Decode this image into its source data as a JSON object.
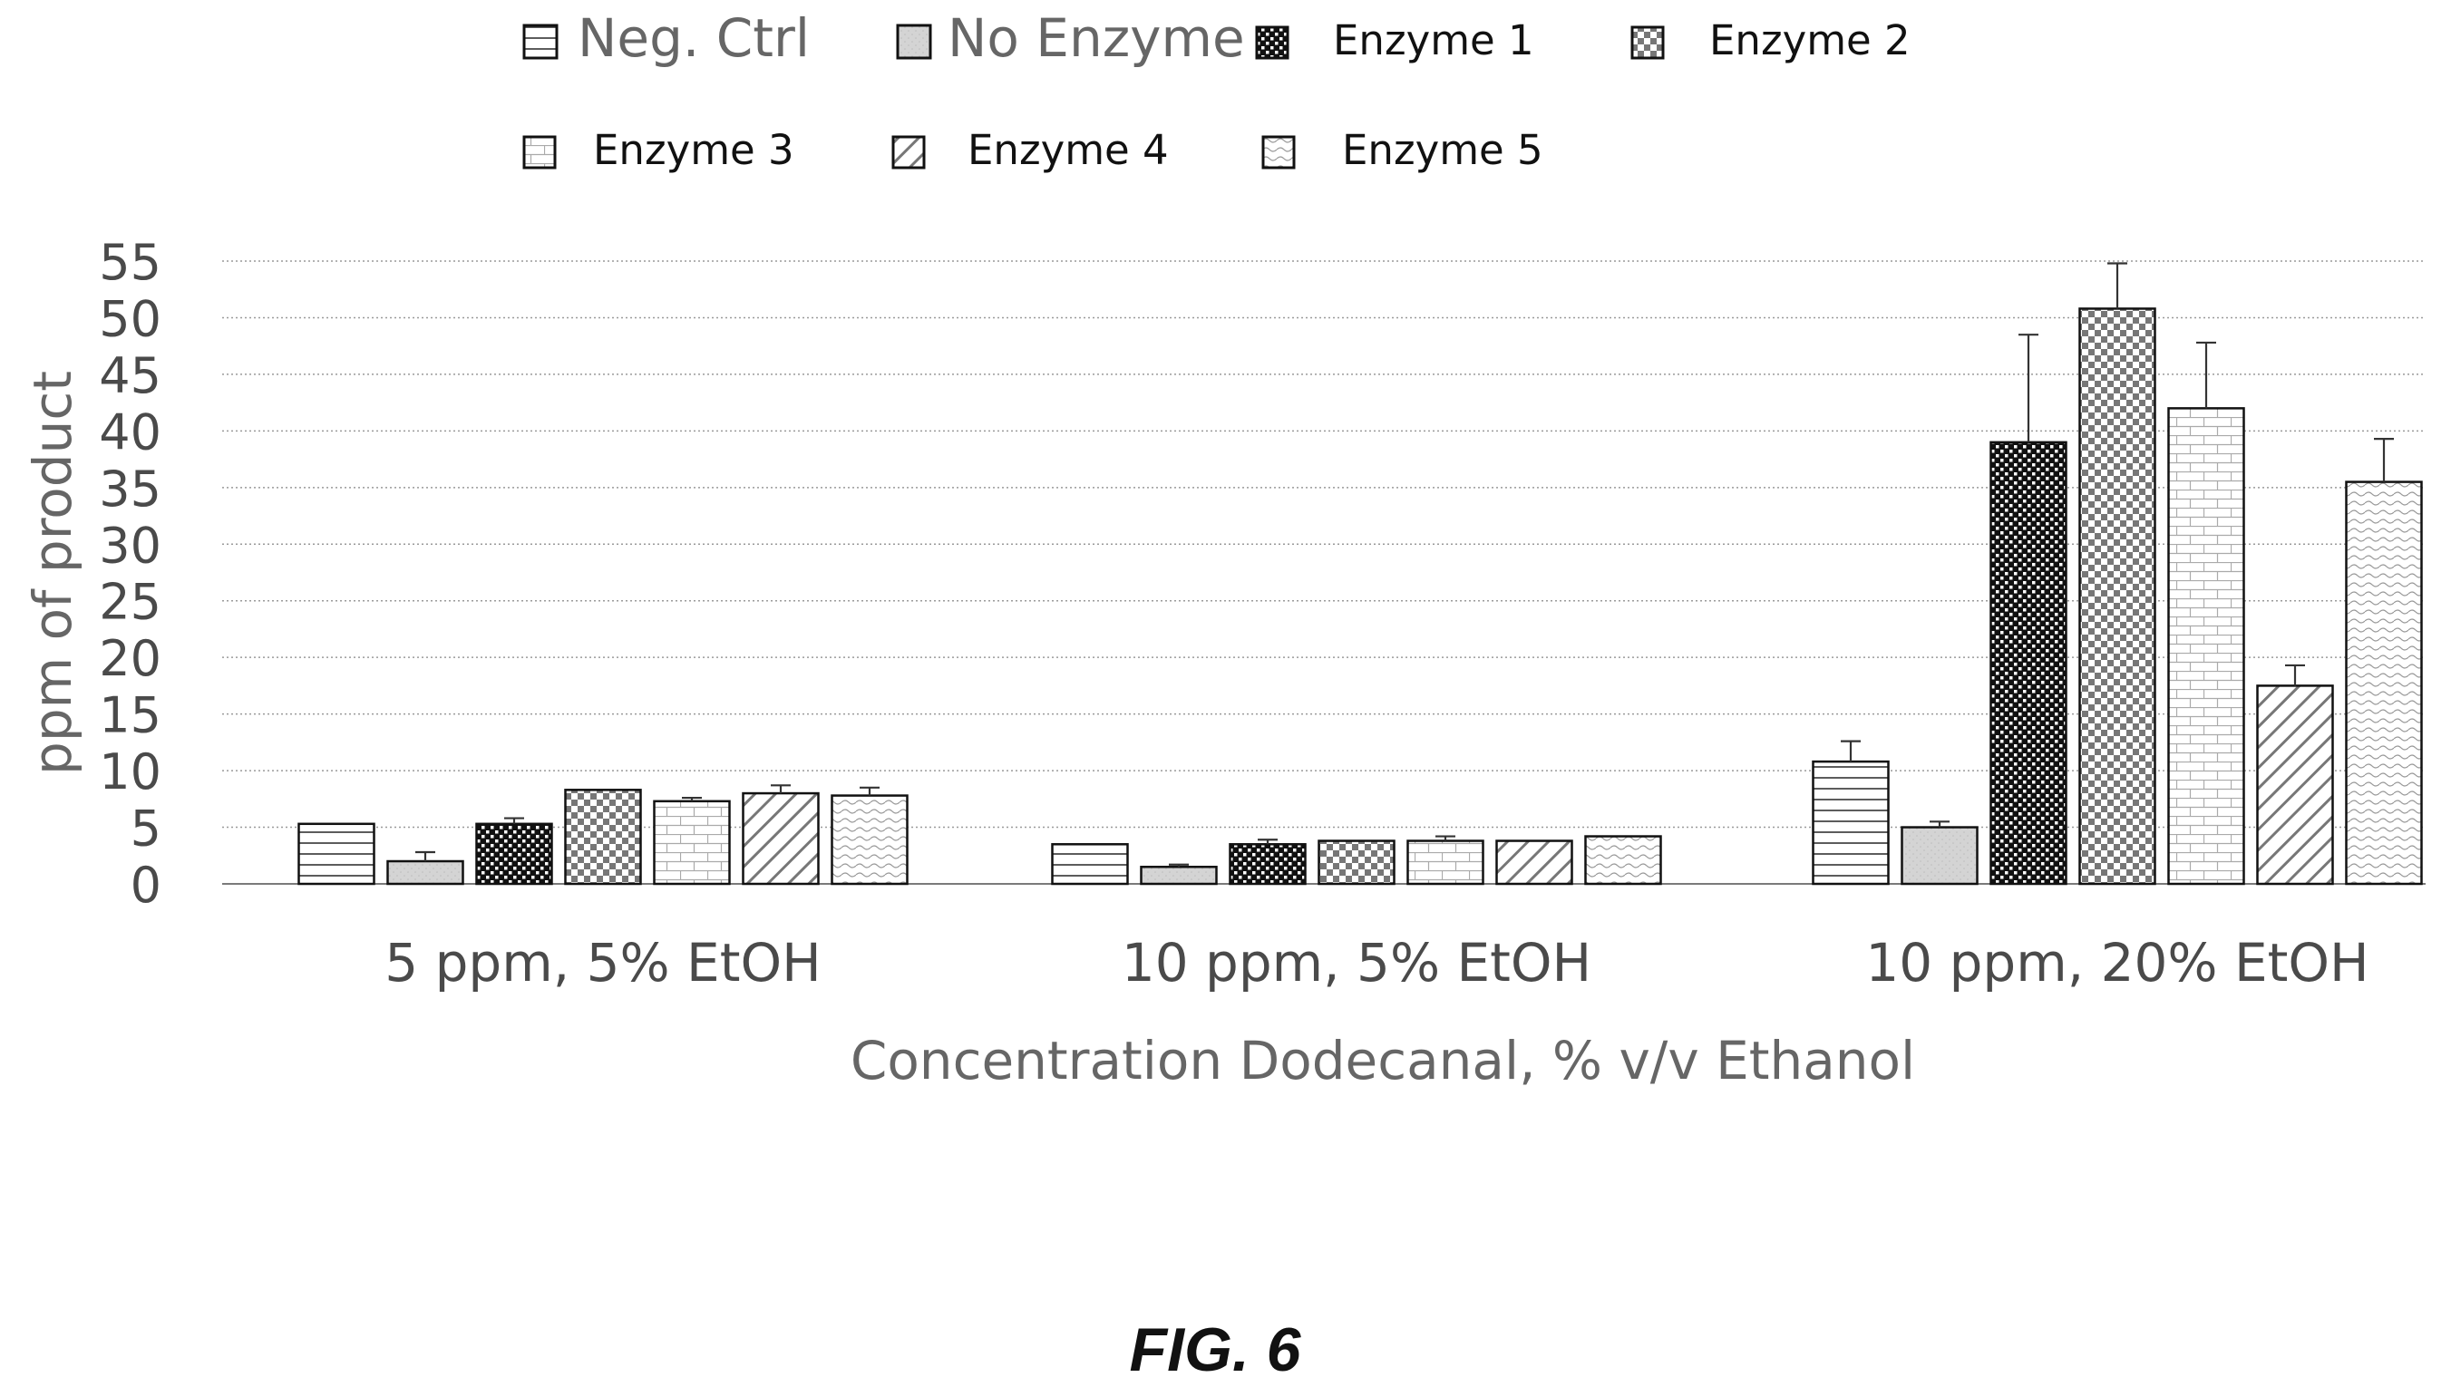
{
  "chart_data": {
    "type": "bar",
    "title": "",
    "xlabel": "Concentration Dodecanal, % v/v Ethanol",
    "ylabel": "ppm of product",
    "ylim": [
      0,
      55
    ],
    "yticks": [
      0,
      5,
      10,
      15,
      20,
      25,
      30,
      35,
      40,
      45,
      50,
      55
    ],
    "grid": "horizontal dotted",
    "legend_position": "top",
    "categories": [
      "5 ppm, 5% EtOH",
      "10 ppm, 5% EtOH",
      "10 ppm, 20% EtOH"
    ],
    "series": [
      {
        "name": "Neg. Ctrl",
        "pattern": "horizontal-lines",
        "values": [
          5.3,
          3.5,
          10.8
        ],
        "error": [
          0,
          0,
          1.8
        ]
      },
      {
        "name": "No Enzyme",
        "pattern": "light-gray",
        "values": [
          2.0,
          1.5,
          5.0
        ],
        "error": [
          0.8,
          0.2,
          0.5
        ]
      },
      {
        "name": "Enzyme 1",
        "pattern": "dots",
        "values": [
          5.3,
          3.5,
          39.0
        ],
        "error": [
          0.5,
          0.4,
          9.5
        ]
      },
      {
        "name": "Enzyme 2",
        "pattern": "checkerboard",
        "values": [
          8.3,
          3.8,
          50.8
        ],
        "error": [
          0,
          0,
          4.0
        ]
      },
      {
        "name": "Enzyme 3",
        "pattern": "bricks",
        "values": [
          7.3,
          3.8,
          42.0
        ],
        "error": [
          0.3,
          0.4,
          5.8
        ]
      },
      {
        "name": "Enzyme 4",
        "pattern": "diagonal-hatch",
        "values": [
          8.0,
          3.8,
          17.5
        ],
        "error": [
          0.7,
          0,
          1.8
        ]
      },
      {
        "name": "Enzyme 5",
        "pattern": "waves",
        "values": [
          7.8,
          4.2,
          35.5
        ],
        "error": [
          0.7,
          0,
          3.8
        ]
      }
    ],
    "legend_rows": [
      [
        "Neg. Ctrl",
        "No Enzyme",
        "Enzyme 1",
        "Enzyme 2"
      ],
      [
        "Enzyme 3",
        "Enzyme 4",
        "Enzyme 5"
      ]
    ]
  },
  "figure": {
    "caption": "FIG. 6"
  },
  "colors": {
    "stroke": "#111111",
    "grid": "#9a9a9a",
    "axis_text": "#4a4a4a",
    "legend_large_text": "#666666",
    "legend_small_text": "#111111",
    "light_fill": "#d4d4d4"
  }
}
